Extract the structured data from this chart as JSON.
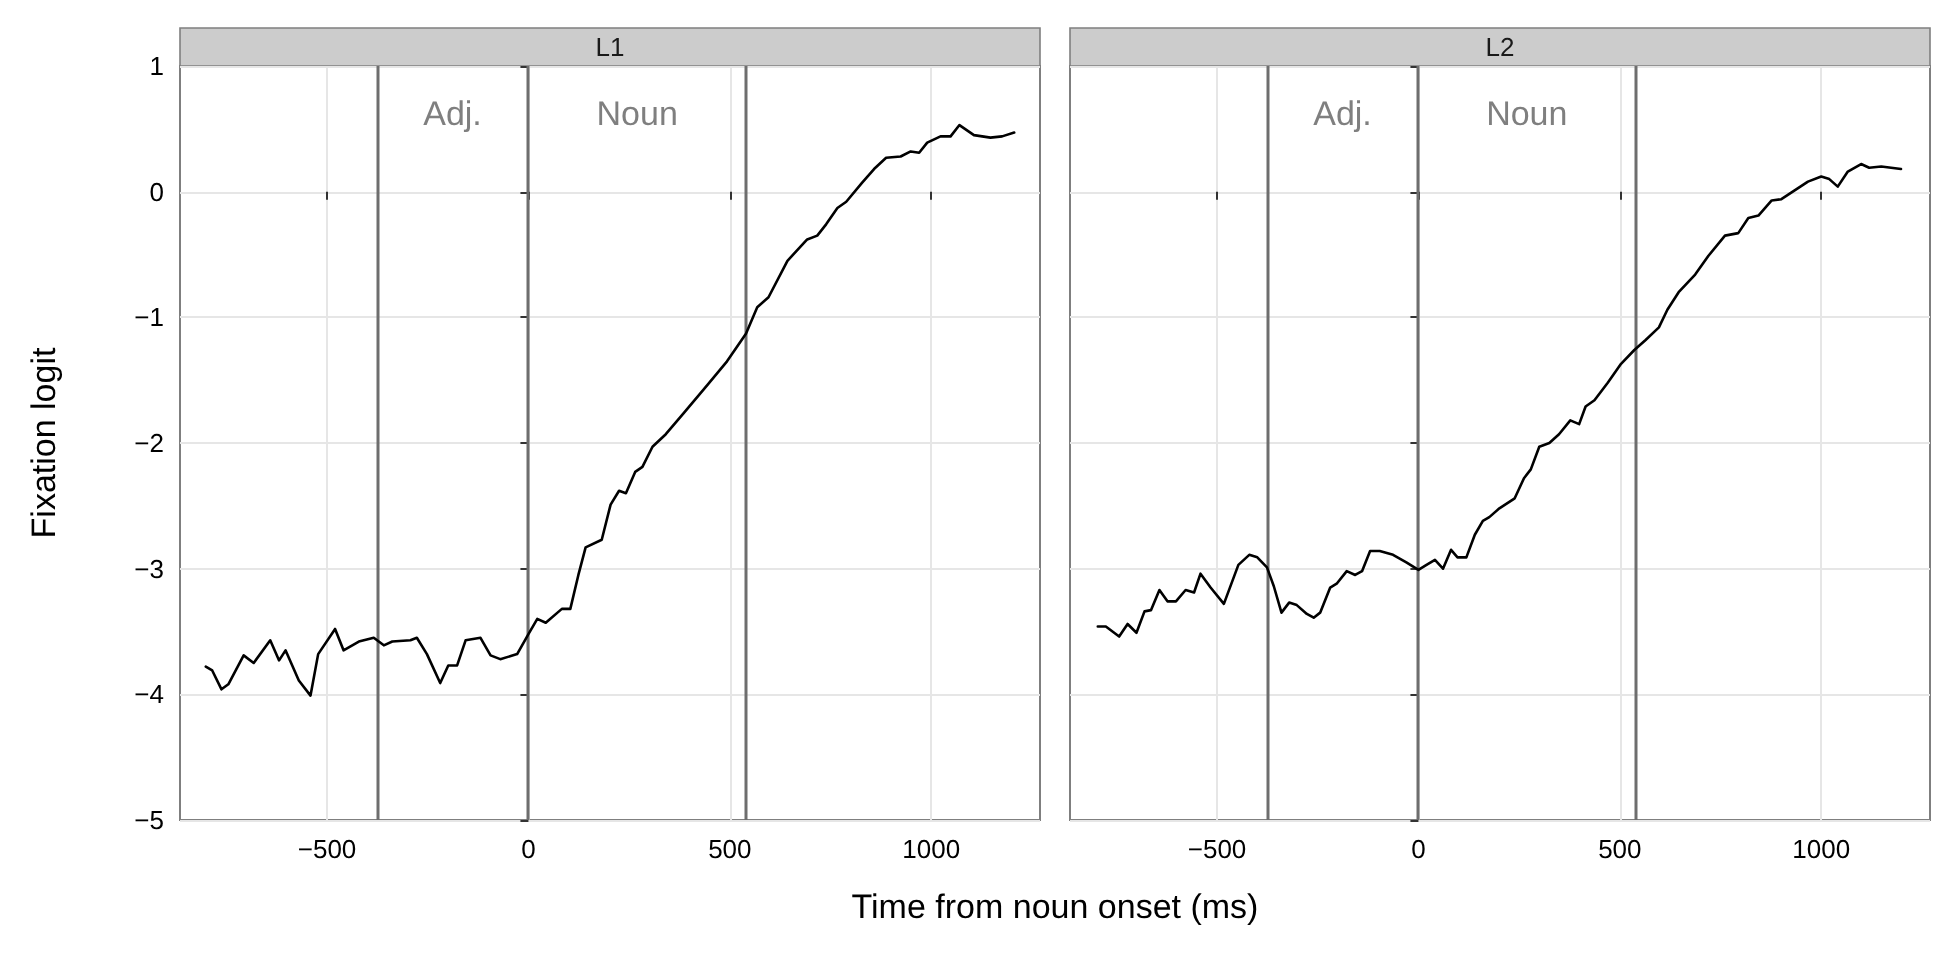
{
  "chart_data": [
    {
      "type": "line",
      "title": "L1",
      "xlabel": "Time from noun onset (ms)",
      "ylabel": "Fixation logit",
      "x": [
        -801,
        -785,
        -762,
        -745,
        -707,
        -682,
        -641,
        -619,
        -603,
        -570,
        -541,
        -522,
        -480,
        -459,
        -421,
        -384,
        -359,
        -338,
        -293,
        -277,
        -252,
        -219,
        -199,
        -177,
        -156,
        -119,
        -94,
        -70,
        -28,
        0,
        22,
        43,
        83,
        104,
        124,
        142,
        182,
        204,
        225,
        242,
        265,
        283,
        308,
        341,
        386,
        444,
        493,
        540,
        568,
        596,
        643,
        692,
        717,
        739,
        767,
        789,
        828,
        858,
        888,
        924,
        949,
        970,
        990,
        1023,
        1048,
        1070,
        1106,
        1147,
        1176,
        1206
      ],
      "series": [
        {
          "color": "#000000",
          "values": [
            -3.78,
            -3.81,
            -3.96,
            -3.92,
            -3.69,
            -3.75,
            -3.57,
            -3.73,
            -3.65,
            -3.89,
            -4.01,
            -3.68,
            -3.48,
            -3.65,
            -3.58,
            -3.55,
            -3.61,
            -3.58,
            -3.57,
            -3.55,
            -3.68,
            -3.91,
            -3.77,
            -3.77,
            -3.57,
            -3.55,
            -3.69,
            -3.72,
            -3.68,
            -3.52,
            -3.4,
            -3.43,
            -3.32,
            -3.32,
            -3.05,
            -2.83,
            -2.77,
            -2.49,
            -2.38,
            -2.4,
            -2.23,
            -2.19,
            -2.03,
            -1.93,
            -1.76,
            -1.54,
            -1.35,
            -1.13,
            -0.92,
            -0.84,
            -0.55,
            -0.38,
            -0.35,
            -0.26,
            -0.13,
            -0.08,
            0.07,
            0.18,
            0.27,
            0.28,
            0.32,
            0.31,
            0.39,
            0.44,
            0.44,
            0.53,
            0.45,
            0.43,
            0.44,
            0.47
          ]
        }
      ],
      "xlim": [
        -865,
        1270
      ],
      "ylim": [
        -5,
        1
      ],
      "xticks": [
        -500,
        0,
        500,
        1000
      ],
      "yticks": [
        -5,
        -4,
        -3,
        -2,
        -1,
        0,
        1
      ],
      "grid": true,
      "line_style": "solid",
      "marker": "none",
      "ref_lines": [
        {
          "axis": "x",
          "value": -377,
          "color": "#6e6e6e"
        },
        {
          "axis": "x",
          "value": 0,
          "color": "#6e6e6e"
        },
        {
          "axis": "x",
          "value": 540,
          "color": "#6e6e6e"
        }
      ],
      "annotations": [
        "Adj.",
        "Noun"
      ]
    },
    {
      "type": "line",
      "title": "L2",
      "x": [
        -796,
        -776,
        -743,
        -722,
        -700,
        -680,
        -664,
        -643,
        -623,
        -602,
        -578,
        -557,
        -541,
        -516,
        -483,
        -447,
        -420,
        -400,
        -376,
        -359,
        -340,
        -321,
        -302,
        -277,
        -260,
        -244,
        -219,
        -203,
        -178,
        -157,
        -140,
        -120,
        -96,
        -63,
        -30,
        0,
        20,
        41,
        61,
        81,
        97,
        119,
        140,
        160,
        176,
        201,
        239,
        262,
        279,
        300,
        325,
        349,
        377,
        399,
        415,
        437,
        470,
        503,
        536,
        564,
        597,
        618,
        646,
        687,
        720,
        761,
        794,
        819,
        844,
        877,
        901,
        934,
        967,
        1000,
        1020,
        1041,
        1066,
        1099,
        1119,
        1149,
        1198
      ],
      "series": [
        {
          "color": "#000000",
          "values": [
            -3.46,
            -3.46,
            -3.54,
            -3.44,
            -3.51,
            -3.34,
            -3.33,
            -3.17,
            -3.26,
            -3.26,
            -3.17,
            -3.19,
            -3.04,
            -3.15,
            -3.28,
            -2.97,
            -2.89,
            -2.91,
            -2.99,
            -3.14,
            -3.35,
            -3.27,
            -3.29,
            -3.36,
            -3.39,
            -3.35,
            -3.15,
            -3.12,
            -3.02,
            -3.05,
            -3.02,
            -2.86,
            -2.86,
            -2.89,
            -2.95,
            -3.01,
            -2.97,
            -2.93,
            -3.0,
            -2.85,
            -2.91,
            -2.91,
            -2.73,
            -2.62,
            -2.59,
            -2.52,
            -2.44,
            -2.28,
            -2.21,
            -2.03,
            -2.0,
            -1.93,
            -1.82,
            -1.85,
            -1.71,
            -1.66,
            -1.52,
            -1.37,
            -1.26,
            -1.18,
            -1.08,
            -0.94,
            -0.8,
            -0.66,
            -0.51,
            -0.35,
            -0.33,
            -0.21,
            -0.19,
            -0.07,
            -0.06,
            0.01,
            0.08,
            0.12,
            0.1,
            0.04,
            0.16,
            0.22,
            0.19,
            0.2,
            0.18
          ]
        }
      ],
      "xlim": [
        -865,
        1270
      ],
      "ylim": [
        -5,
        1
      ],
      "xticks": [
        -500,
        0,
        500,
        1000
      ],
      "yticks": [
        -5,
        -4,
        -3,
        -2,
        -1,
        0,
        1
      ],
      "grid": true,
      "line_style": "solid",
      "marker": "none",
      "tick_labels": "x",
      "ref_lines": [
        {
          "axis": "x",
          "value": -377,
          "color": "#6e6e6e"
        },
        {
          "axis": "x",
          "value": 0,
          "color": "#6e6e6e"
        },
        {
          "axis": "x",
          "value": 538,
          "color": "#6e6e6e"
        }
      ],
      "annotations": [
        "Adj.",
        "Noun"
      ]
    }
  ]
}
